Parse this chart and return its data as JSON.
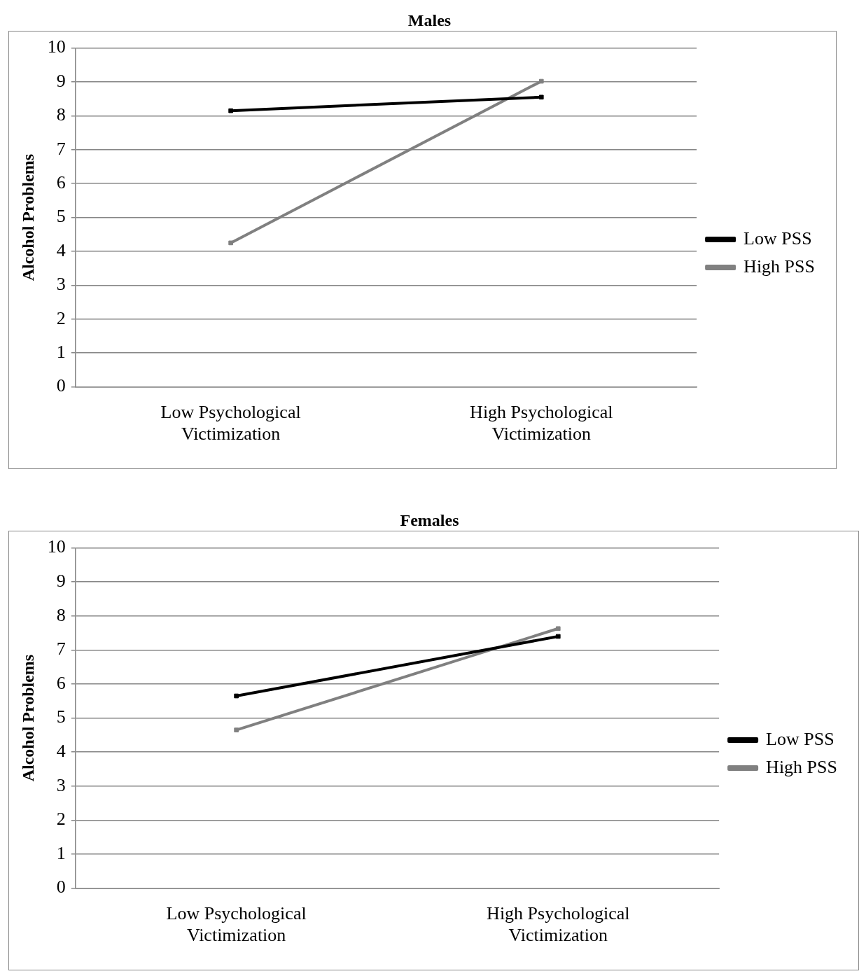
{
  "chart_data": [
    {
      "type": "line",
      "title": "Males",
      "ylabel": "Alcohol Problems",
      "categories": [
        "Low Psychological Victimization",
        "High Psychological Victimization"
      ],
      "series": [
        {
          "name": "Low PSS",
          "color": "#000000",
          "values": [
            8.15,
            8.55
          ]
        },
        {
          "name": "High PSS",
          "color": "#808080",
          "values": [
            4.25,
            9.02
          ]
        }
      ],
      "ylim": [
        0,
        10
      ],
      "yticks": [
        0,
        1,
        2,
        3,
        4,
        5,
        6,
        7,
        8,
        9,
        10
      ],
      "grid": "y",
      "legend": "right",
      "marker": "square",
      "line_style": "solid"
    },
    {
      "type": "line",
      "title": "Females",
      "ylabel": "Alcohol Problems",
      "categories": [
        "Low Psychological Victimization",
        "High Psychological Victimization"
      ],
      "series": [
        {
          "name": "Low PSS",
          "color": "#000000",
          "values": [
            5.65,
            7.4
          ]
        },
        {
          "name": "High PSS",
          "color": "#808080",
          "values": [
            4.65,
            7.63
          ]
        }
      ],
      "ylim": [
        0,
        10
      ],
      "yticks": [
        0,
        1,
        2,
        3,
        4,
        5,
        6,
        7,
        8,
        9,
        10
      ],
      "grid": "y",
      "legend": "right",
      "marker": "square",
      "line_style": "solid"
    }
  ]
}
